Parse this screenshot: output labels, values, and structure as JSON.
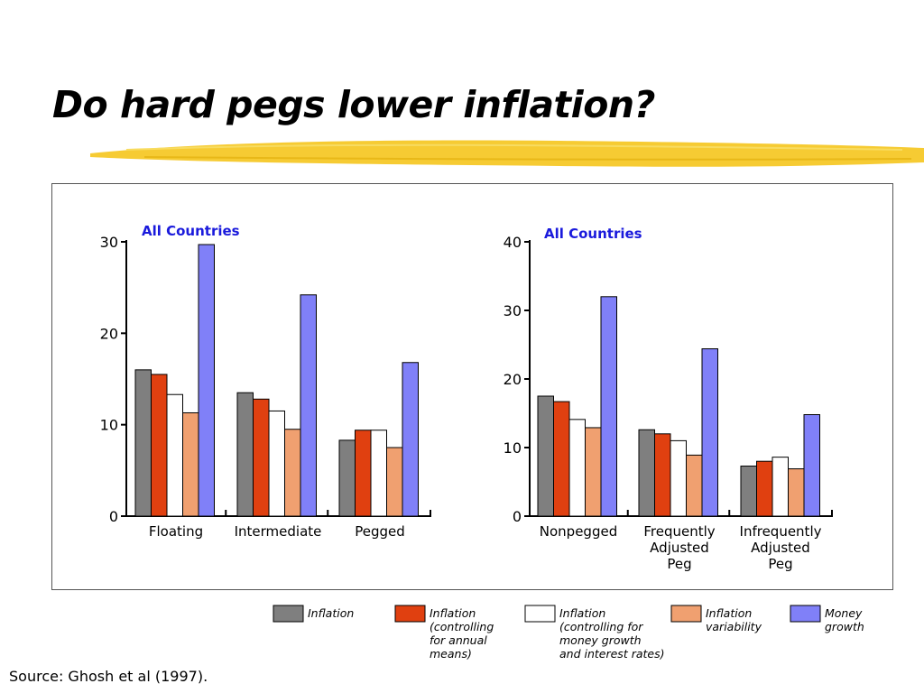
{
  "slide": {
    "title": "Do hard pegs lower inflation?",
    "source": "Source: Ghosh et al (1997)."
  },
  "colors": {
    "inflation": "#7f7f7f",
    "inflation_controlling_annual": "#e04010",
    "inflation_controlling_money": "#ffffff",
    "inflation_variability": "#f0a070",
    "money_growth": "#8080f8",
    "chart_title": "#1a1adc",
    "brush": "#f5c828"
  },
  "legend": {
    "items": [
      {
        "key": "inflation",
        "lines": [
          "Inflation"
        ]
      },
      {
        "key": "inflation_controlling_annual",
        "lines": [
          "Inflation",
          "(controlling",
          "for annual",
          "means)"
        ]
      },
      {
        "key": "inflation_controlling_money",
        "lines": [
          "Inflation",
          "(controlling for",
          "money growth",
          "and interest rates)"
        ]
      },
      {
        "key": "inflation_variability",
        "lines": [
          "Inflation",
          "variability"
        ]
      },
      {
        "key": "money_growth",
        "lines": [
          "Money",
          "growth"
        ]
      }
    ]
  },
  "chart_data": [
    {
      "type": "bar",
      "title": "All  Countries",
      "categories": [
        [
          "Floating"
        ],
        [
          "Intermediate"
        ],
        [
          "Pegged"
        ]
      ],
      "ylim": [
        0,
        30
      ],
      "yticks": [
        0,
        10,
        20,
        30
      ],
      "grid": false,
      "series": [
        {
          "key": "inflation",
          "name": "Inflation",
          "values": [
            16.0,
            13.5,
            8.3
          ]
        },
        {
          "key": "inflation_controlling_annual",
          "name": "Inflation (controlling for annual means)",
          "values": [
            15.5,
            12.8,
            9.4
          ]
        },
        {
          "key": "inflation_controlling_money",
          "name": "Inflation (controlling for money growth and interest rates)",
          "values": [
            13.3,
            11.5,
            9.4
          ]
        },
        {
          "key": "inflation_variability",
          "name": "Inflation variability",
          "values": [
            11.3,
            9.5,
            7.5
          ]
        },
        {
          "key": "money_growth",
          "name": "Money growth",
          "values": [
            29.7,
            24.2,
            16.8
          ]
        }
      ]
    },
    {
      "type": "bar",
      "title": "All  Countries",
      "categories": [
        [
          "Nonpegged"
        ],
        [
          "Frequently",
          "Adjusted",
          "Peg"
        ],
        [
          "Infrequently",
          "Adjusted",
          "Peg"
        ]
      ],
      "ylim": [
        0,
        40
      ],
      "yticks": [
        0,
        10,
        20,
        30,
        40
      ],
      "grid": false,
      "series": [
        {
          "key": "inflation",
          "name": "Inflation",
          "values": [
            17.5,
            12.6,
            7.3
          ]
        },
        {
          "key": "inflation_controlling_annual",
          "name": "Inflation (controlling for annual means)",
          "values": [
            16.7,
            12.0,
            8.0
          ]
        },
        {
          "key": "inflation_controlling_money",
          "name": "Inflation (controlling for money growth and interest rates)",
          "values": [
            14.1,
            11.0,
            8.6
          ]
        },
        {
          "key": "inflation_variability",
          "name": "Inflation variability",
          "values": [
            12.9,
            8.9,
            6.9
          ]
        },
        {
          "key": "money_growth",
          "name": "Money growth",
          "values": [
            32.0,
            24.4,
            14.8
          ]
        }
      ]
    }
  ]
}
